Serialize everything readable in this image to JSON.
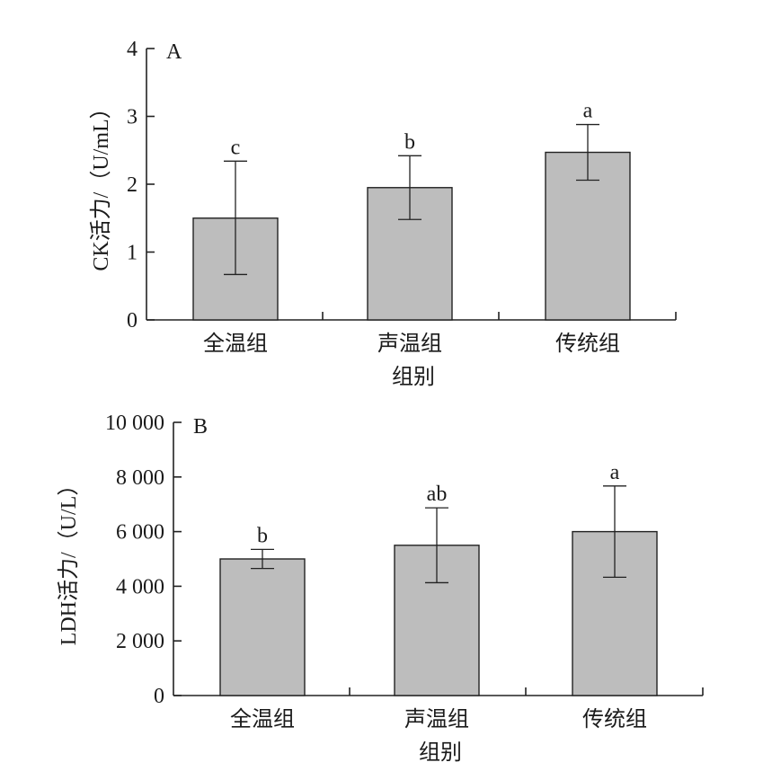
{
  "chart_data": [
    {
      "type": "bar",
      "panel_label": "A",
      "categories": [
        "全温组",
        "声温组",
        "传统组"
      ],
      "values": [
        1.5,
        1.95,
        2.47
      ],
      "error_low": [
        0.67,
        1.48,
        2.06
      ],
      "error_high": [
        2.34,
        2.42,
        2.88
      ],
      "significance": [
        "c",
        "b",
        "a"
      ],
      "xlabel": "组别",
      "ylabel": "CK活力/（U/mL）",
      "ylim": [
        0,
        4
      ],
      "yticks": [
        "0",
        "1",
        "2",
        "3",
        "4"
      ],
      "bar_color": "#bdbdbd",
      "grid": false
    },
    {
      "type": "bar",
      "panel_label": "B",
      "categories": [
        "全温组",
        "声温组",
        "传统组"
      ],
      "values": [
        5000,
        5500,
        6000
      ],
      "error_low": [
        4650,
        4130,
        4330
      ],
      "error_high": [
        5350,
        6870,
        7670
      ],
      "significance": [
        "b",
        "ab",
        "a"
      ],
      "xlabel": "组别",
      "ylabel": "LDH活力/（U/L）",
      "ylim": [
        0,
        10000
      ],
      "yticks": [
        "0",
        "2 000",
        "4 000",
        "6 000",
        "8 000",
        "10 000"
      ],
      "bar_color": "#bdbdbd",
      "grid": false
    }
  ]
}
